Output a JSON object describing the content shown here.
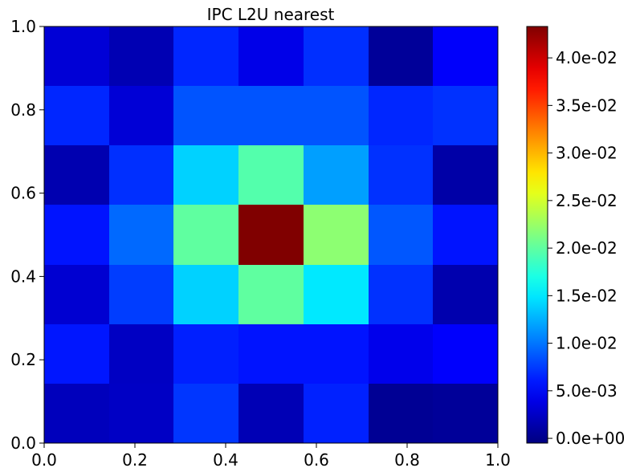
{
  "chart_data": {
    "type": "heatmap",
    "title": "IPC L2U nearest",
    "xlabel": "",
    "ylabel": "",
    "xlim": [
      0.0,
      1.0
    ],
    "ylim": [
      0.0,
      1.0
    ],
    "x_ticks": [
      "0.0",
      "0.2",
      "0.4",
      "0.6",
      "0.8",
      "1.0"
    ],
    "y_ticks": [
      "0.0",
      "0.2",
      "0.4",
      "0.6",
      "0.8",
      "1.0"
    ],
    "grid": false,
    "colormap": "jet",
    "color_range": [
      -0.0005,
      0.0433
    ],
    "colorbar_ticks": [
      "0.0e+00",
      "5.0e-03",
      "1.0e-02",
      "1.5e-02",
      "2.0e-02",
      "2.5e-02",
      "3.0e-02",
      "3.5e-02",
      "4.0e-02"
    ],
    "grid_size": [
      7,
      7
    ],
    "values_rows_top_to_bottom": [
      [
        0.0032,
        0.0017,
        0.0066,
        0.004,
        0.007,
        0.0006,
        0.0048
      ],
      [
        0.0066,
        0.0032,
        0.0086,
        0.0086,
        0.0086,
        0.0066,
        0.0071
      ],
      [
        0.0016,
        0.007,
        0.014,
        0.0195,
        0.0118,
        0.0071,
        0.0012
      ],
      [
        0.0058,
        0.0095,
        0.02,
        0.0433,
        0.022,
        0.0087,
        0.0058
      ],
      [
        0.003,
        0.0076,
        0.014,
        0.02,
        0.015,
        0.0071,
        0.0015
      ],
      [
        0.0059,
        0.0024,
        0.0063,
        0.0058,
        0.0058,
        0.0041,
        0.0049
      ],
      [
        0.0021,
        0.0025,
        0.0073,
        0.0018,
        0.0064,
        0.0004,
        0.0006
      ]
    ]
  }
}
